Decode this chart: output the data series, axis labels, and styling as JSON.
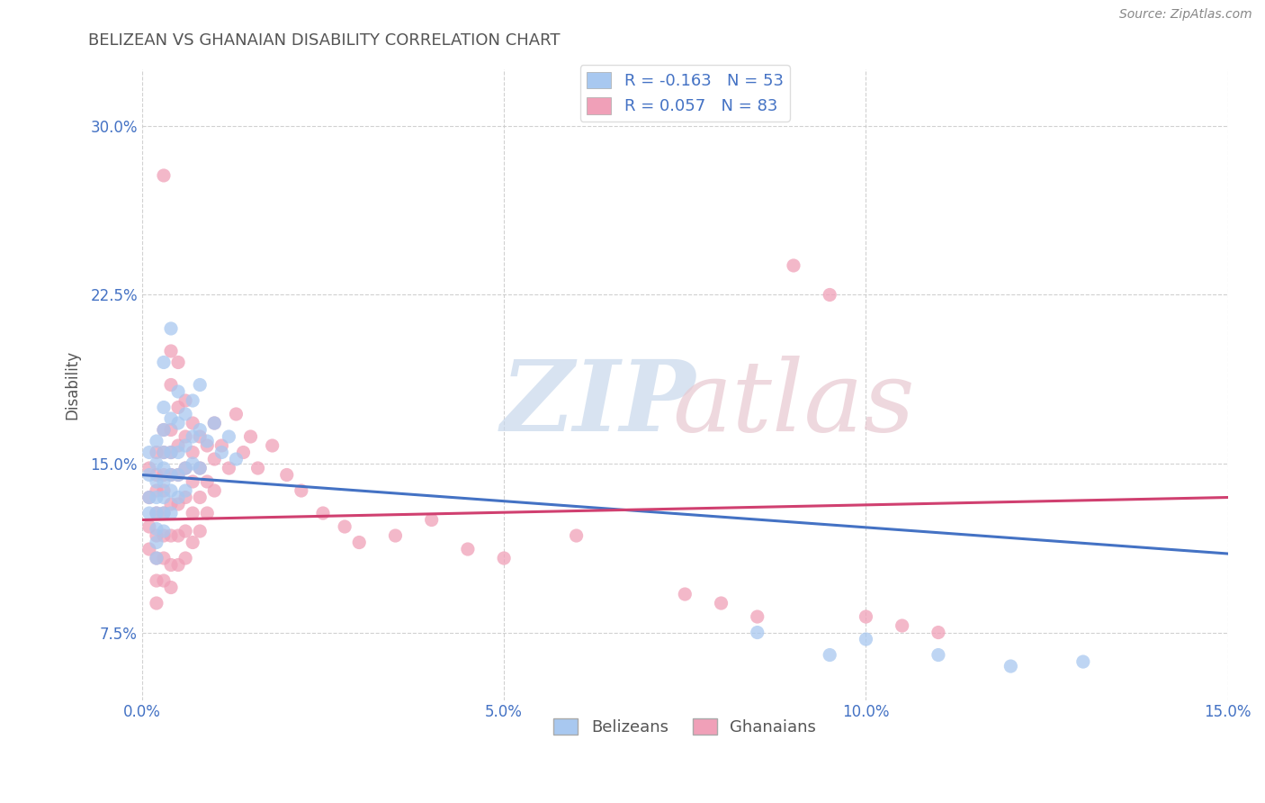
{
  "title": "BELIZEAN VS GHANAIAN DISABILITY CORRELATION CHART",
  "source_text": "Source: ZipAtlas.com",
  "ylabel": "Disability",
  "xlim": [
    0.0,
    0.15
  ],
  "ylim": [
    0.045,
    0.325
  ],
  "xtick_labels": [
    "0.0%",
    "5.0%",
    "10.0%",
    "15.0%"
  ],
  "xtick_vals": [
    0.0,
    0.05,
    0.1,
    0.15
  ],
  "ytick_labels": [
    "7.5%",
    "15.0%",
    "22.5%",
    "30.0%"
  ],
  "ytick_vals": [
    0.075,
    0.15,
    0.225,
    0.3
  ],
  "belizean_R": -0.163,
  "belizean_N": 53,
  "ghanaian_R": 0.057,
  "ghanaian_N": 83,
  "belizean_color": "#a8c8f0",
  "ghanaian_color": "#f0a0b8",
  "belizean_line_color": "#4472c4",
  "ghanaian_line_color": "#d04070",
  "background_color": "#ffffff",
  "grid_color": "#cccccc",
  "belizean_scatter": [
    [
      0.001,
      0.155
    ],
    [
      0.001,
      0.145
    ],
    [
      0.001,
      0.135
    ],
    [
      0.001,
      0.128
    ],
    [
      0.002,
      0.16
    ],
    [
      0.002,
      0.15
    ],
    [
      0.002,
      0.142
    ],
    [
      0.002,
      0.135
    ],
    [
      0.002,
      0.128
    ],
    [
      0.002,
      0.121
    ],
    [
      0.002,
      0.115
    ],
    [
      0.002,
      0.108
    ],
    [
      0.003,
      0.195
    ],
    [
      0.003,
      0.175
    ],
    [
      0.003,
      0.165
    ],
    [
      0.003,
      0.155
    ],
    [
      0.003,
      0.148
    ],
    [
      0.003,
      0.142
    ],
    [
      0.003,
      0.135
    ],
    [
      0.003,
      0.128
    ],
    [
      0.003,
      0.12
    ],
    [
      0.004,
      0.21
    ],
    [
      0.004,
      0.17
    ],
    [
      0.004,
      0.155
    ],
    [
      0.004,
      0.145
    ],
    [
      0.004,
      0.138
    ],
    [
      0.004,
      0.128
    ],
    [
      0.005,
      0.182
    ],
    [
      0.005,
      0.168
    ],
    [
      0.005,
      0.155
    ],
    [
      0.005,
      0.145
    ],
    [
      0.005,
      0.135
    ],
    [
      0.006,
      0.172
    ],
    [
      0.006,
      0.158
    ],
    [
      0.006,
      0.148
    ],
    [
      0.006,
      0.138
    ],
    [
      0.007,
      0.178
    ],
    [
      0.007,
      0.162
    ],
    [
      0.007,
      0.15
    ],
    [
      0.008,
      0.185
    ],
    [
      0.008,
      0.165
    ],
    [
      0.008,
      0.148
    ],
    [
      0.009,
      0.16
    ],
    [
      0.01,
      0.168
    ],
    [
      0.011,
      0.155
    ],
    [
      0.012,
      0.162
    ],
    [
      0.013,
      0.152
    ],
    [
      0.085,
      0.075
    ],
    [
      0.095,
      0.065
    ],
    [
      0.1,
      0.072
    ],
    [
      0.11,
      0.065
    ],
    [
      0.12,
      0.06
    ],
    [
      0.13,
      0.062
    ]
  ],
  "ghanaian_scatter": [
    [
      0.001,
      0.148
    ],
    [
      0.001,
      0.135
    ],
    [
      0.001,
      0.122
    ],
    [
      0.001,
      0.112
    ],
    [
      0.002,
      0.155
    ],
    [
      0.002,
      0.145
    ],
    [
      0.002,
      0.138
    ],
    [
      0.002,
      0.128
    ],
    [
      0.002,
      0.118
    ],
    [
      0.002,
      0.108
    ],
    [
      0.002,
      0.098
    ],
    [
      0.002,
      0.088
    ],
    [
      0.003,
      0.278
    ],
    [
      0.003,
      0.165
    ],
    [
      0.003,
      0.155
    ],
    [
      0.003,
      0.145
    ],
    [
      0.003,
      0.138
    ],
    [
      0.003,
      0.128
    ],
    [
      0.003,
      0.118
    ],
    [
      0.003,
      0.108
    ],
    [
      0.003,
      0.098
    ],
    [
      0.004,
      0.2
    ],
    [
      0.004,
      0.185
    ],
    [
      0.004,
      0.165
    ],
    [
      0.004,
      0.155
    ],
    [
      0.004,
      0.145
    ],
    [
      0.004,
      0.132
    ],
    [
      0.004,
      0.118
    ],
    [
      0.004,
      0.105
    ],
    [
      0.004,
      0.095
    ],
    [
      0.005,
      0.195
    ],
    [
      0.005,
      0.175
    ],
    [
      0.005,
      0.158
    ],
    [
      0.005,
      0.145
    ],
    [
      0.005,
      0.132
    ],
    [
      0.005,
      0.118
    ],
    [
      0.005,
      0.105
    ],
    [
      0.006,
      0.178
    ],
    [
      0.006,
      0.162
    ],
    [
      0.006,
      0.148
    ],
    [
      0.006,
      0.135
    ],
    [
      0.006,
      0.12
    ],
    [
      0.006,
      0.108
    ],
    [
      0.007,
      0.168
    ],
    [
      0.007,
      0.155
    ],
    [
      0.007,
      0.142
    ],
    [
      0.007,
      0.128
    ],
    [
      0.007,
      0.115
    ],
    [
      0.008,
      0.162
    ],
    [
      0.008,
      0.148
    ],
    [
      0.008,
      0.135
    ],
    [
      0.008,
      0.12
    ],
    [
      0.009,
      0.158
    ],
    [
      0.009,
      0.142
    ],
    [
      0.009,
      0.128
    ],
    [
      0.01,
      0.168
    ],
    [
      0.01,
      0.152
    ],
    [
      0.01,
      0.138
    ],
    [
      0.011,
      0.158
    ],
    [
      0.012,
      0.148
    ],
    [
      0.013,
      0.172
    ],
    [
      0.014,
      0.155
    ],
    [
      0.015,
      0.162
    ],
    [
      0.016,
      0.148
    ],
    [
      0.018,
      0.158
    ],
    [
      0.02,
      0.145
    ],
    [
      0.022,
      0.138
    ],
    [
      0.025,
      0.128
    ],
    [
      0.028,
      0.122
    ],
    [
      0.03,
      0.115
    ],
    [
      0.035,
      0.118
    ],
    [
      0.04,
      0.125
    ],
    [
      0.045,
      0.112
    ],
    [
      0.05,
      0.108
    ],
    [
      0.06,
      0.118
    ],
    [
      0.075,
      0.092
    ],
    [
      0.08,
      0.088
    ],
    [
      0.085,
      0.082
    ],
    [
      0.09,
      0.238
    ],
    [
      0.095,
      0.225
    ],
    [
      0.1,
      0.082
    ],
    [
      0.105,
      0.078
    ],
    [
      0.11,
      0.075
    ]
  ]
}
